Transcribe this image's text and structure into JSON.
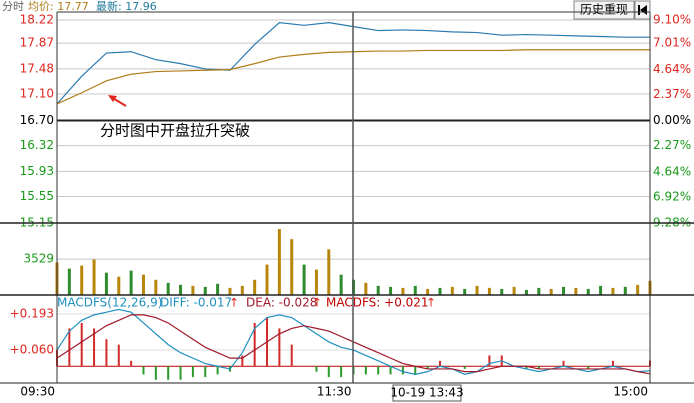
{
  "header": {
    "mode": "分时",
    "avg": "均价: 17.77",
    "last": "最新: 17.96",
    "button": "历史重现"
  },
  "annotation": "分时图中开盘拉升突破",
  "cursor_time": "10-19 13:43",
  "chart_data": [
    {
      "type": "line",
      "x": [
        0,
        10,
        20,
        30,
        40,
        50,
        60,
        70,
        80,
        90,
        100,
        110,
        120,
        130,
        140,
        150,
        160,
        170,
        180,
        190,
        200,
        210,
        220,
        230,
        240
      ],
      "xlim": [
        0,
        240
      ],
      "series": [
        {
          "color": "#2a7ab0",
          "values": [
            16.95,
            17.37,
            17.72,
            17.74,
            17.62,
            17.56,
            17.48,
            17.46,
            17.85,
            18.18,
            18.14,
            18.18,
            18.12,
            18.06,
            18.07,
            18.06,
            18.04,
            18.03,
            17.99,
            18.0,
            17.99,
            17.98,
            17.97,
            17.96,
            17.96
          ]
        },
        {
          "color": "#b07d1a",
          "values": [
            16.95,
            17.12,
            17.3,
            17.4,
            17.44,
            17.45,
            17.46,
            17.47,
            17.56,
            17.66,
            17.7,
            17.73,
            17.74,
            17.75,
            17.75,
            17.76,
            17.76,
            17.76,
            17.76,
            17.77,
            17.77,
            17.77,
            17.77,
            17.77,
            17.77
          ]
        }
      ],
      "ylim": [
        15.15,
        18.22
      ],
      "yticks": [
        18.22,
        17.87,
        17.48,
        {
          "value": 17.1,
          "label": "17.10"
        },
        {
          "value": 16.7,
          "label": "16.70"
        },
        16.32,
        15.93,
        15.55,
        15.15
      ],
      "y2lim": [
        -9.28,
        9.1
      ],
      "y2ticks": [
        {
          "value": 9.1,
          "label": "9.10%"
        },
        {
          "value": 7.01,
          "label": "7.01%"
        },
        {
          "value": 4.64,
          "label": "4.64%"
        },
        {
          "value": 2.37,
          "label": "2.37%"
        },
        {
          "value": 0,
          "label": "0.00%"
        },
        {
          "value": -2.27,
          "label": "2.27%"
        },
        {
          "value": -4.64,
          "label": "4.64%"
        },
        {
          "value": -6.92,
          "label": "6.92%"
        },
        {
          "value": -9.28,
          "label": "9.28%"
        }
      ],
      "up_color": "#e0261f",
      "down_color": "#1a9a1a",
      "flat_color": "#000000",
      "grid": true
    },
    {
      "type": "bar",
      "x": [
        0,
        5,
        10,
        15,
        20,
        25,
        30,
        35,
        40,
        45,
        50,
        55,
        60,
        65,
        70,
        75,
        80,
        85,
        90,
        95,
        100,
        105,
        110,
        115,
        120,
        125,
        130,
        135,
        140,
        145,
        150,
        155,
        160,
        165,
        170,
        175,
        180,
        185,
        190,
        195,
        200,
        205,
        210,
        215,
        220,
        225,
        230,
        235,
        240
      ],
      "xlim": [
        0,
        240
      ],
      "values": [
        3200,
        2600,
        2900,
        3500,
        2200,
        1800,
        2400,
        2000,
        1500,
        1200,
        1000,
        900,
        800,
        1100,
        700,
        900,
        1500,
        3000,
        6500,
        5500,
        3000,
        2500,
        4500,
        2000,
        1500,
        1200,
        900,
        800,
        700,
        900,
        600,
        700,
        800,
        600,
        900,
        700,
        600,
        800,
        500,
        700,
        600,
        800,
        700,
        600,
        900,
        700,
        800,
        1000,
        1400
      ],
      "colors": [
        "#b8860b",
        "#2e8b2e",
        "#b8860b",
        "#b8860b",
        "#2e8b2e",
        "#b8860b",
        "#2e8b2e",
        "#b8860b",
        "#b8860b",
        "#2e8b2e",
        "#2e8b2e",
        "#b8860b",
        "#2e8b2e",
        "#2e8b2e",
        "#b8860b",
        "#b8860b",
        "#b8860b",
        "#b8860b",
        "#b8860b",
        "#b8860b",
        "#2e8b2e",
        "#b8860b",
        "#b8860b",
        "#2e8b2e",
        "#2e8b2e",
        "#b8860b",
        "#2e8b2e",
        "#2e8b2e",
        "#b8860b",
        "#2e8b2e",
        "#b8860b",
        "#2e8b2e",
        "#b8860b",
        "#2e8b2e",
        "#b8860b",
        "#b8860b",
        "#2e8b2e",
        "#b8860b",
        "#2e8b2e",
        "#2e8b2e",
        "#b8860b",
        "#2e8b2e",
        "#b8860b",
        "#2e8b2e",
        "#2e8b2e",
        "#b8860b",
        "#2e8b2e",
        "#b8860b",
        "#b8860b"
      ],
      "ylim": [
        0,
        6700
      ],
      "yticks": [
        3529
      ]
    },
    {
      "type": "macd",
      "labels": {
        "name": "MACDFS(12,26,9)",
        "diff": "DIFF: -0.017",
        "dea": "DEA: -0.028",
        "macd": "MACDFS: +0.021",
        "arrow": "↑"
      },
      "x": [
        0,
        5,
        10,
        15,
        20,
        25,
        30,
        35,
        40,
        45,
        50,
        55,
        60,
        65,
        70,
        75,
        80,
        85,
        90,
        95,
        100,
        105,
        110,
        115,
        120,
        125,
        130,
        135,
        140,
        145,
        150,
        155,
        160,
        165,
        170,
        175,
        180,
        185,
        190,
        195,
        200,
        205,
        210,
        215,
        220,
        225,
        230,
        235,
        240
      ],
      "xlim": [
        0,
        240
      ],
      "xticks": [
        {
          "value": 0,
          "label": "09:30"
        },
        {
          "value": 120,
          "label": "11:30"
        },
        {
          "value": 240,
          "label": "15:00"
        }
      ],
      "series": [
        {
          "kind": "line",
          "color": "#1f8fc0",
          "values": [
            0.06,
            0.13,
            0.17,
            0.19,
            0.2,
            0.21,
            0.2,
            0.16,
            0.12,
            0.08,
            0.05,
            0.03,
            0.01,
            0.0,
            -0.01,
            0.05,
            0.14,
            0.18,
            0.19,
            0.18,
            0.15,
            0.12,
            0.09,
            0.07,
            0.06,
            0.04,
            0.02,
            0.0,
            -0.02,
            -0.03,
            -0.02,
            0.0,
            -0.01,
            -0.03,
            -0.02,
            0.01,
            0.02,
            0.0,
            -0.01,
            -0.02,
            -0.01,
            0.0,
            -0.01,
            -0.02,
            -0.01,
            0.0,
            -0.01,
            -0.02,
            -0.017
          ]
        },
        {
          "kind": "line",
          "color": "#a0182a",
          "values": [
            0.03,
            0.06,
            0.09,
            0.12,
            0.15,
            0.17,
            0.19,
            0.19,
            0.18,
            0.16,
            0.13,
            0.1,
            0.07,
            0.05,
            0.03,
            0.03,
            0.06,
            0.09,
            0.12,
            0.14,
            0.15,
            0.14,
            0.13,
            0.11,
            0.09,
            0.07,
            0.05,
            0.03,
            0.01,
            0.0,
            -0.01,
            -0.01,
            -0.01,
            -0.02,
            -0.02,
            -0.01,
            0.0,
            0.0,
            0.0,
            -0.01,
            -0.01,
            -0.01,
            -0.01,
            -0.01,
            -0.01,
            -0.01,
            -0.01,
            -0.02,
            -0.028
          ]
        },
        {
          "kind": "bar",
          "color": "#d42a2a",
          "down_color": "#2a9a2a",
          "values": [
            0.06,
            0.14,
            0.16,
            0.14,
            0.1,
            0.08,
            0.02,
            -0.03,
            -0.05,
            -0.05,
            -0.05,
            -0.04,
            -0.04,
            -0.03,
            -0.02,
            0.04,
            0.16,
            0.18,
            0.14,
            0.08,
            0.0,
            -0.02,
            -0.04,
            -0.04,
            -0.03,
            -0.03,
            -0.03,
            -0.03,
            -0.03,
            -0.03,
            -0.01,
            0.02,
            0.0,
            -0.01,
            0.0,
            0.04,
            0.04,
            0.0,
            -0.01,
            -0.01,
            0.0,
            0.02,
            0.0,
            -0.01,
            0.0,
            0.02,
            0.0,
            0.0,
            0.021
          ]
        }
      ],
      "ylim": [
        -0.062,
        0.245
      ],
      "yticks": [
        {
          "value": 0.193,
          "label": "+0.193"
        },
        {
          "value": 0.06,
          "label": "+0.060"
        }
      ],
      "zero_color": "#c00000"
    }
  ]
}
